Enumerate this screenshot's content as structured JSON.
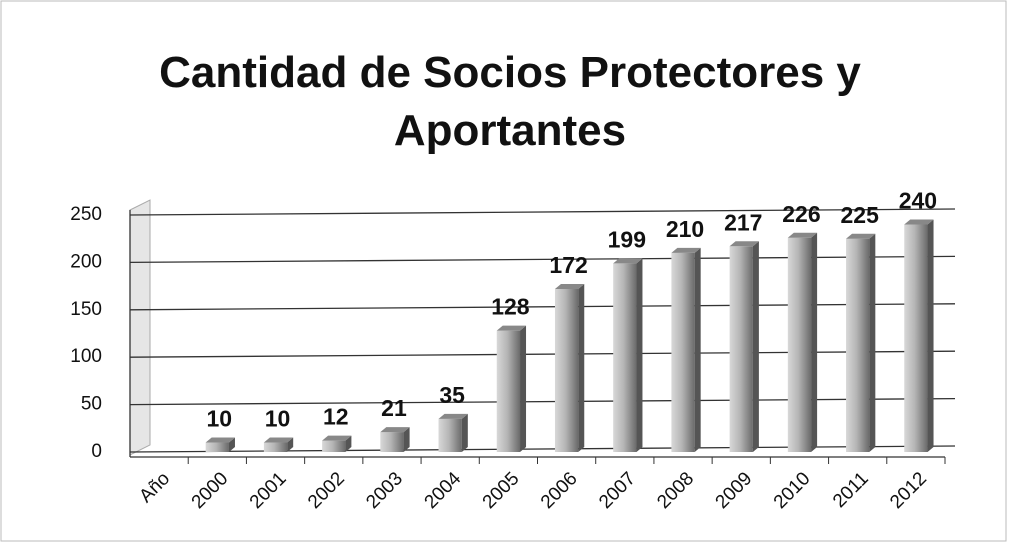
{
  "chart_data": {
    "type": "bar",
    "title": "Cantidad de Socios Protectores y Aportantes",
    "categories": [
      "Año",
      "2000",
      "2001",
      "2002",
      "2003",
      "2004",
      "2005",
      "2006",
      "2007",
      "2008",
      "2009",
      "2010",
      "2011",
      "2012"
    ],
    "values": [
      null,
      10,
      10,
      12,
      21,
      35,
      128,
      172,
      199,
      210,
      217,
      226,
      225,
      240
    ],
    "color": "#9a9a9a",
    "ylim": [
      0,
      250
    ],
    "yticks": [
      0,
      50,
      100,
      150,
      200,
      250
    ],
    "grid": true
  }
}
